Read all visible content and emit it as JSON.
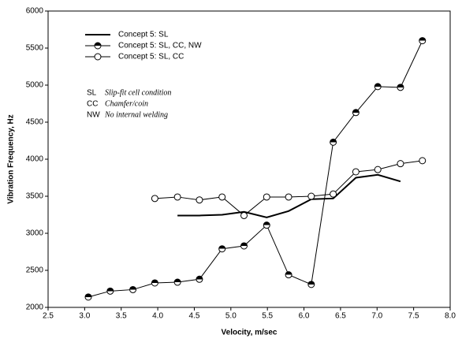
{
  "chart_data": {
    "type": "line",
    "xlabel": "Velocity, m/sec",
    "ylabel": "Vibration Frequency, Hz",
    "xlim": [
      2.5,
      8.0
    ],
    "xticks": [
      {
        "value": 2.5,
        "label": "2.5"
      },
      {
        "value": 3,
        "label": "3.0"
      },
      {
        "value": 3.5,
        "label": "3.5"
      },
      {
        "value": 4,
        "label": "4.0"
      },
      {
        "value": 4.5,
        "label": "4.5"
      },
      {
        "value": 5,
        "label": "5.0"
      },
      {
        "value": 5.5,
        "label": "5.5"
      },
      {
        "value": 6,
        "label": "6.0"
      },
      {
        "value": 6.5,
        "label": "6.5"
      },
      {
        "value": 7,
        "label": "7.0"
      },
      {
        "value": 7.5,
        "label": "7.5"
      },
      {
        "value": 8,
        "label": "8.0"
      }
    ],
    "ylim": [
      2000,
      6000
    ],
    "yticks": [
      2000,
      2500,
      3000,
      3500,
      4000,
      4500,
      5000,
      5500,
      6000
    ],
    "grid": false,
    "legend": "upper left",
    "series": [
      {
        "name": "Concept 5:  SL",
        "color": "#000000",
        "marker": "none",
        "linewidth": 2,
        "x": [
          4.27,
          4.57,
          4.88,
          5.18,
          5.49,
          5.79,
          6.1,
          6.4,
          6.71,
          7.01,
          7.32
        ],
        "values": [
          3240,
          3240,
          3250,
          3290,
          3215,
          3300,
          3460,
          3470,
          3750,
          3790,
          3700
        ]
      },
      {
        "name": "Concept 5:  SL, CC, NW",
        "color": "#000000",
        "marker": "half",
        "linewidth": 1,
        "x": [
          3.05,
          3.35,
          3.66,
          3.96,
          4.27,
          4.57,
          4.88,
          5.18,
          5.49,
          5.79,
          6.1,
          6.4,
          6.71,
          7.01,
          7.32,
          7.62
        ],
        "values": [
          2140,
          2220,
          2240,
          2330,
          2340,
          2380,
          2790,
          2830,
          3110,
          2440,
          2310,
          4230,
          4630,
          4980,
          4970,
          5600
        ]
      },
      {
        "name": "Concept 5:  SL, CC",
        "color": "#000000",
        "marker": "open",
        "linewidth": 1,
        "x": [
          3.96,
          4.27,
          4.57,
          4.88,
          5.18,
          5.49,
          5.79,
          6.1,
          6.4,
          6.71,
          7.01,
          7.32,
          7.62
        ],
        "values": [
          3470,
          3490,
          3450,
          3490,
          3240,
          3490,
          3490,
          3500,
          3530,
          3830,
          3860,
          3940,
          3980
        ]
      }
    ],
    "annotations": [
      {
        "abbr": "SL",
        "text": "Slip-fit cell condition"
      },
      {
        "abbr": "CC",
        "text": "Chamfer/coin"
      },
      {
        "abbr": "NW",
        "text": "No internal welding"
      }
    ]
  }
}
